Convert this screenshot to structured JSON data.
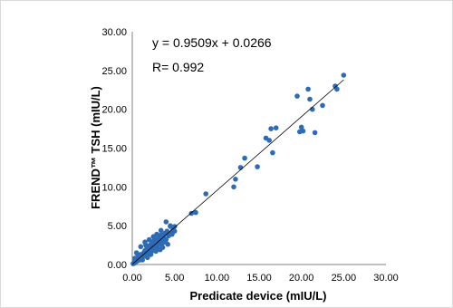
{
  "chart_data": {
    "type": "scatter",
    "xlabel": "Predicate device (mIU/L)",
    "ylabel": "FREND™ TSH (mIU/L)",
    "xlim": [
      0,
      30
    ],
    "ylim": [
      0,
      30
    ],
    "x_ticks": [
      "0.00",
      "5.00",
      "10.00",
      "15.00",
      "20.00",
      "25.00",
      "30.00"
    ],
    "y_ticks": [
      "0.00",
      "5.00",
      "10.00",
      "15.00",
      "20.00",
      "25.00",
      "30.00"
    ],
    "grid": false,
    "legend": "none",
    "colors": {
      "points": "#2e6bb5",
      "trendline": "#000000",
      "axis": "#808080"
    },
    "annotations": [
      "y = 0.9509x + 0.0266",
      "R= 0.992"
    ],
    "trendline": {
      "slope": 0.9509,
      "intercept": 0.0266,
      "x_range": [
        0,
        25
      ]
    },
    "points": [
      [
        0.1,
        0.1
      ],
      [
        0.2,
        0.15
      ],
      [
        0.25,
        0.3
      ],
      [
        0.3,
        0.2
      ],
      [
        0.4,
        0.35
      ],
      [
        0.45,
        0.5
      ],
      [
        0.5,
        0.4
      ],
      [
        0.6,
        0.6
      ],
      [
        0.65,
        0.5
      ],
      [
        0.7,
        0.8
      ],
      [
        0.8,
        0.7
      ],
      [
        0.85,
        0.95
      ],
      [
        0.9,
        0.6
      ],
      [
        1.0,
        1.0
      ],
      [
        1.0,
        1.3
      ],
      [
        1.1,
        0.9
      ],
      [
        1.15,
        1.2
      ],
      [
        1.2,
        1.0
      ],
      [
        1.3,
        1.4
      ],
      [
        1.35,
        1.1
      ],
      [
        1.4,
        1.6
      ],
      [
        1.5,
        1.2
      ],
      [
        1.5,
        1.8
      ],
      [
        1.6,
        1.5
      ],
      [
        1.7,
        1.3
      ],
      [
        1.7,
        2.0
      ],
      [
        1.8,
        1.7
      ],
      [
        1.9,
        2.2
      ],
      [
        2.0,
        1.6
      ],
      [
        2.0,
        2.4
      ],
      [
        2.1,
        1.9
      ],
      [
        2.2,
        2.6
      ],
      [
        2.3,
        2.1
      ],
      [
        2.3,
        1.7
      ],
      [
        2.4,
        2.9
      ],
      [
        2.5,
        2.3
      ],
      [
        2.6,
        2.0
      ],
      [
        2.6,
        3.1
      ],
      [
        2.7,
        2.6
      ],
      [
        2.8,
        2.2
      ],
      [
        2.9,
        2.8
      ],
      [
        3.0,
        3.3
      ],
      [
        3.0,
        2.4
      ],
      [
        3.1,
        2.9
      ],
      [
        3.2,
        3.5
      ],
      [
        3.3,
        2.6
      ],
      [
        3.4,
        3.8
      ],
      [
        3.5,
        3.1
      ],
      [
        3.6,
        2.8
      ],
      [
        3.7,
        3.5
      ],
      [
        3.8,
        4.0
      ],
      [
        4.0,
        3.2
      ],
      [
        4.1,
        4.3
      ],
      [
        4.3,
        3.7
      ],
      [
        4.5,
        4.9
      ],
      [
        4.6,
        4.1
      ],
      [
        4.8,
        4.4
      ],
      [
        0.5,
        1.5
      ],
      [
        1.0,
        2.3
      ],
      [
        1.5,
        2.9
      ],
      [
        2.0,
        3.2
      ],
      [
        2.5,
        3.6
      ],
      [
        1.8,
        0.9
      ],
      [
        2.8,
        1.7
      ],
      [
        3.3,
        1.9
      ],
      [
        4.0,
        5.5
      ],
      [
        4.5,
        5.0
      ],
      [
        5.0,
        4.3
      ],
      [
        5.0,
        4.9
      ],
      [
        4.2,
        2.6
      ],
      [
        3.6,
        2.2
      ],
      [
        0.3,
        0.8
      ],
      [
        0.7,
        1.2
      ],
      [
        1.2,
        0.6
      ],
      [
        2.2,
        1.3
      ],
      [
        3.8,
        2.9
      ],
      [
        4.7,
        3.9
      ],
      [
        1.6,
        2.5
      ],
      [
        2.9,
        3.9
      ],
      [
        3.4,
        4.4
      ],
      [
        7.0,
        6.6
      ],
      [
        7.5,
        6.7
      ],
      [
        8.7,
        9.1
      ],
      [
        12.0,
        10.0
      ],
      [
        12.2,
        11.0
      ],
      [
        12.8,
        12.5
      ],
      [
        13.3,
        13.7
      ],
      [
        14.8,
        12.6
      ],
      [
        15.8,
        16.3
      ],
      [
        16.2,
        16.0
      ],
      [
        16.4,
        17.5
      ],
      [
        16.6,
        14.4
      ],
      [
        17.0,
        17.6
      ],
      [
        19.5,
        21.7
      ],
      [
        19.8,
        17.1
      ],
      [
        20.0,
        17.7
      ],
      [
        20.2,
        17.2
      ],
      [
        20.8,
        22.6
      ],
      [
        21.0,
        21.3
      ],
      [
        21.3,
        20.0
      ],
      [
        21.6,
        17.0
      ],
      [
        22.5,
        20.5
      ],
      [
        24.0,
        23.0
      ],
      [
        24.2,
        22.6
      ],
      [
        25.0,
        24.4
      ]
    ]
  }
}
